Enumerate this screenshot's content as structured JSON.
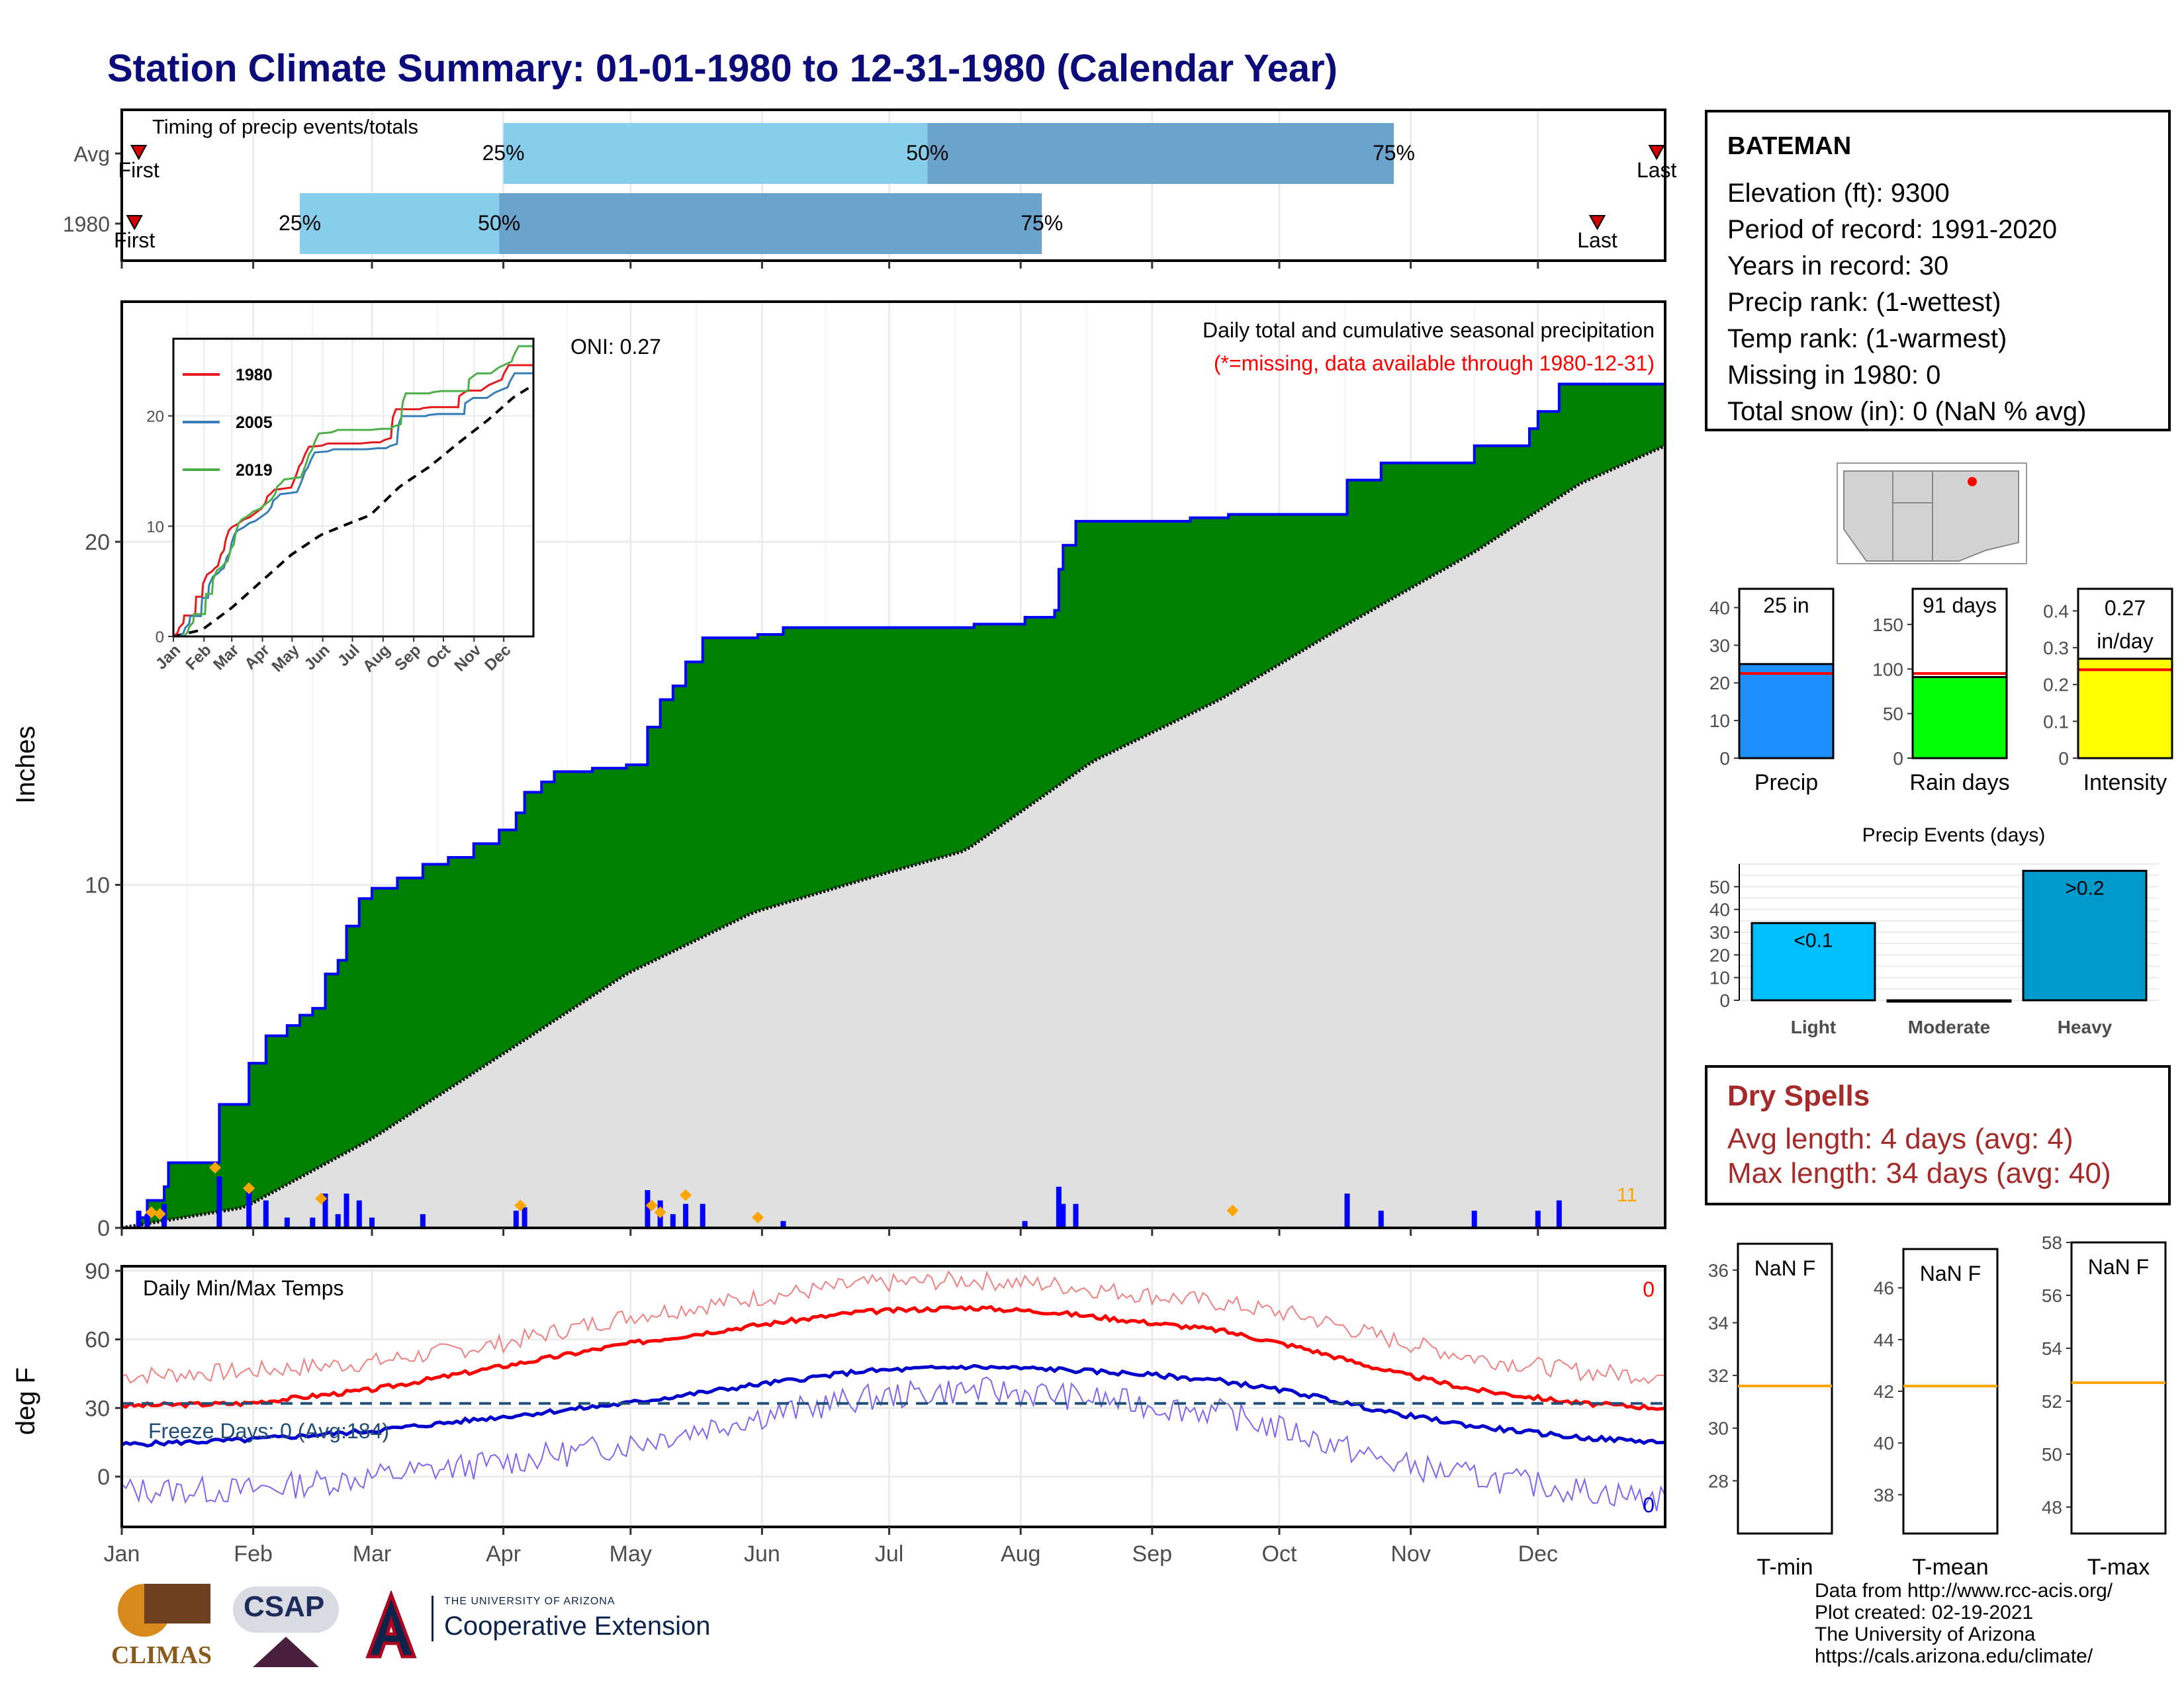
{
  "title": "Station Climate Summary: 01-01-1980 to 12-31-1980 (Calendar Year)",
  "station": {
    "name": "BATEMAN",
    "lines": [
      "Elevation (ft): 9300",
      "Period of record: 1991-2020",
      "Years in record: 30",
      "Precip rank:  (1-wettest)",
      "Temp rank:  (1-warmest)",
      "Missing in 1980: 0",
      "Total snow (in): 0 (NaN % avg)"
    ]
  },
  "dry_spells": {
    "heading": "Dry Spells",
    "avg": "Avg length: 4 days (avg: 4)",
    "max": "Max length: 34 days (avg: 40)"
  },
  "credits": [
    "Data from http://www.rcc-acis.org/",
    "Plot created: 02-19-2021",
    "The University of Arizona",
    "https://cals.arizona.edu/climate/"
  ],
  "logos": {
    "climas": "CLIMAS",
    "csap": "CSAP",
    "ua_small": "THE UNIVERSITY OF ARIZONA",
    "ua_big": "Cooperative Extension"
  },
  "colors": {
    "cum_green": "#008000",
    "cum_outline": "#0000ff",
    "normal_gray": "#e0e0e0",
    "bars_blue": "#0000ff",
    "tmax": "#ff0000",
    "tmin": "#0000cd",
    "timing_light": "#87ceeb",
    "timing_dark": "#6aa3cc",
    "precip_bar": "#1e90ff",
    "raindays_bar": "#00ff00",
    "intensity_bar": "#ffff00"
  },
  "chart_data": [
    {
      "type": "bar",
      "name": "timing",
      "title": "Timing of precip events/totals",
      "categories": [
        "Avg",
        "1980"
      ],
      "rows": [
        {
          "label": "Avg",
          "first": "Jan 5",
          "last": "Dec 29",
          "p25": "Apr 1",
          "p50": "Jul 10",
          "p75": "Oct 28",
          "labels": {
            "first": "First",
            "last": "Last",
            "p25": "25%",
            "p50": "50%",
            "p75": "75%"
          }
        },
        {
          "label": "1980",
          "first": "Jan 4",
          "last": "Dec 15",
          "p25": "Feb 12",
          "p50": "Mar 31",
          "p75": "Aug 6",
          "labels": {
            "first": "First",
            "last": "Last",
            "p25": "25%",
            "p50": "50%",
            "p75": "75%"
          }
        }
      ]
    },
    {
      "type": "area",
      "name": "cumulative_precip",
      "title": "Daily total and cumulative seasonal precipitation",
      "subtitle": "(*=missing, data available through 1980-12-31)",
      "annotation": "ONI: 0.27",
      "corner_count": "11",
      "ylabel": "Inches",
      "ylim": [
        0,
        27
      ],
      "yticks": [
        0,
        10,
        20
      ],
      "xticks": [
        "Jan",
        "Feb",
        "Mar",
        "Apr",
        "May",
        "Jun",
        "Jul",
        "Aug",
        "Sep",
        "Oct",
        "Nov",
        "Dec"
      ],
      "cumulative_1980": [
        [
          1,
          0
        ],
        [
          5,
          0.3
        ],
        [
          7,
          0.8
        ],
        [
          11,
          1.2
        ],
        [
          12,
          1.9
        ],
        [
          23,
          1.9
        ],
        [
          24,
          3.6
        ],
        [
          30,
          3.6
        ],
        [
          31,
          4.8
        ],
        [
          35,
          5.6
        ],
        [
          40,
          5.9
        ],
        [
          43,
          6.2
        ],
        [
          46,
          6.4
        ],
        [
          49,
          7.4
        ],
        [
          52,
          7.8
        ],
        [
          54,
          8.8
        ],
        [
          57,
          9.6
        ],
        [
          60,
          9.9
        ],
        [
          66,
          10.2
        ],
        [
          72,
          10.6
        ],
        [
          78,
          10.8
        ],
        [
          84,
          11.2
        ],
        [
          90,
          11.6
        ],
        [
          94,
          12.1
        ],
        [
          96,
          12.7
        ],
        [
          100,
          13.0
        ],
        [
          103,
          13.3
        ],
        [
          112,
          13.4
        ],
        [
          120,
          13.5
        ],
        [
          125,
          14.6
        ],
        [
          128,
          15.4
        ],
        [
          131,
          15.8
        ],
        [
          134,
          16.5
        ],
        [
          138,
          17.2
        ],
        [
          151,
          17.3
        ],
        [
          157,
          17.5
        ],
        [
          190,
          17.5
        ],
        [
          202,
          17.6
        ],
        [
          210,
          17.6
        ],
        [
          214,
          17.8
        ],
        [
          221,
          18.0
        ],
        [
          222,
          19.2
        ],
        [
          223,
          19.9
        ],
        [
          226,
          20.6
        ],
        [
          250,
          20.6
        ],
        [
          253,
          20.7
        ],
        [
          262,
          20.8
        ],
        [
          289,
          20.8
        ],
        [
          290,
          21.8
        ],
        [
          298,
          22.3
        ],
        [
          312,
          22.3
        ],
        [
          320,
          22.8
        ],
        [
          333,
          23.3
        ],
        [
          335,
          23.8
        ],
        [
          340,
          24.6
        ],
        [
          365,
          24.6
        ]
      ],
      "normal": [
        [
          1,
          0
        ],
        [
          30,
          0.6
        ],
        [
          60,
          2.6
        ],
        [
          90,
          5.0
        ],
        [
          120,
          7.4
        ],
        [
          150,
          9.2
        ],
        [
          180,
          10.3
        ],
        [
          200,
          11.0
        ],
        [
          230,
          13.6
        ],
        [
          260,
          15.4
        ],
        [
          290,
          17.6
        ],
        [
          320,
          19.7
        ],
        [
          345,
          21.7
        ],
        [
          365,
          22.8
        ]
      ],
      "daily_bars": [
        [
          5,
          0.5
        ],
        [
          7,
          0.4
        ],
        [
          11,
          0.7
        ],
        [
          24,
          1.5
        ],
        [
          31,
          1.2
        ],
        [
          35,
          0.8
        ],
        [
          40,
          0.3
        ],
        [
          46,
          0.3
        ],
        [
          49,
          1.0
        ],
        [
          52,
          0.4
        ],
        [
          54,
          1.0
        ],
        [
          57,
          0.8
        ],
        [
          60,
          0.3
        ],
        [
          72,
          0.4
        ],
        [
          94,
          0.5
        ],
        [
          96,
          0.6
        ],
        [
          125,
          1.1
        ],
        [
          128,
          0.8
        ],
        [
          131,
          0.4
        ],
        [
          134,
          0.7
        ],
        [
          138,
          0.7
        ],
        [
          157,
          0.2
        ],
        [
          214,
          0.2
        ],
        [
          222,
          1.2
        ],
        [
          223,
          0.7
        ],
        [
          226,
          0.7
        ],
        [
          290,
          1.0
        ],
        [
          298,
          0.5
        ],
        [
          320,
          0.5
        ],
        [
          335,
          0.5
        ],
        [
          340,
          0.8
        ]
      ],
      "extreme_markers": [
        [
          8,
          0.3
        ],
        [
          10,
          0.25
        ],
        [
          23,
          1.6
        ],
        [
          31,
          1.0
        ],
        [
          48,
          0.7
        ],
        [
          95,
          0.5
        ],
        [
          126,
          0.5
        ],
        [
          128,
          0.3
        ],
        [
          134,
          0.8
        ],
        [
          151,
          0.15
        ],
        [
          263,
          0.35
        ]
      ]
    },
    {
      "type": "line",
      "name": "inset_cumulative",
      "series": [
        {
          "name": "1980"
        },
        {
          "name": "2005"
        },
        {
          "name": "2019"
        }
      ],
      "ylim": [
        0,
        27
      ],
      "yticks": [
        0,
        10,
        20
      ],
      "xticks": [
        "Jan",
        "Feb",
        "Mar",
        "Apr",
        "May",
        "Jun",
        "Jul",
        "Aug",
        "Sep",
        "Oct",
        "Nov",
        "Dec"
      ]
    },
    {
      "type": "line",
      "name": "temperature",
      "title": "Daily Min/Max Temps",
      "ylabel": "deg F",
      "ylim": [
        -22,
        92
      ],
      "yticks": [
        0,
        30,
        60,
        90
      ],
      "xticks": [
        "Jan",
        "Feb",
        "Mar",
        "Apr",
        "May",
        "Jun",
        "Jul",
        "Aug",
        "Sep",
        "Oct",
        "Nov",
        "Dec"
      ],
      "freeze_line": 32,
      "annotation": "Freeze Days: 0 (Avg:184)",
      "tmax_count": "0",
      "tmin_count": "0",
      "avg_max": [
        [
          1,
          31
        ],
        [
          30,
          32
        ],
        [
          60,
          38
        ],
        [
          90,
          48
        ],
        [
          120,
          58
        ],
        [
          150,
          66
        ],
        [
          175,
          72
        ],
        [
          200,
          74
        ],
        [
          220,
          72
        ],
        [
          240,
          68
        ],
        [
          260,
          64
        ],
        [
          280,
          56
        ],
        [
          300,
          46
        ],
        [
          320,
          38
        ],
        [
          345,
          32
        ],
        [
          365,
          30
        ]
      ],
      "avg_min": [
        [
          1,
          14
        ],
        [
          30,
          16
        ],
        [
          60,
          20
        ],
        [
          90,
          26
        ],
        [
          120,
          32
        ],
        [
          150,
          40
        ],
        [
          175,
          46
        ],
        [
          200,
          48
        ],
        [
          220,
          47
        ],
        [
          240,
          45
        ],
        [
          260,
          42
        ],
        [
          280,
          36
        ],
        [
          300,
          28
        ],
        [
          320,
          22
        ],
        [
          345,
          17
        ],
        [
          365,
          15
        ]
      ],
      "rec_max": [
        [
          1,
          44
        ],
        [
          30,
          46
        ],
        [
          60,
          50
        ],
        [
          90,
          58
        ],
        [
          120,
          70
        ],
        [
          150,
          78
        ],
        [
          175,
          84
        ],
        [
          200,
          86
        ],
        [
          220,
          84
        ],
        [
          240,
          80
        ],
        [
          260,
          76
        ],
        [
          280,
          70
        ],
        [
          300,
          60
        ],
        [
          320,
          52
        ],
        [
          345,
          46
        ],
        [
          365,
          44
        ]
      ],
      "rec_min": [
        [
          1,
          -6
        ],
        [
          30,
          -6
        ],
        [
          60,
          0
        ],
        [
          90,
          6
        ],
        [
          120,
          14
        ],
        [
          150,
          26
        ],
        [
          175,
          34
        ],
        [
          200,
          38
        ],
        [
          220,
          36
        ],
        [
          240,
          32
        ],
        [
          260,
          28
        ],
        [
          280,
          18
        ],
        [
          300,
          6
        ],
        [
          320,
          0
        ],
        [
          345,
          -6
        ],
        [
          365,
          -10
        ]
      ]
    },
    {
      "type": "bar",
      "name": "totals",
      "panels": [
        {
          "name": "Precip",
          "value": 25,
          "avg": 22.5,
          "ylim": [
            0,
            45
          ],
          "yticks": [
            0,
            10,
            20,
            30,
            40
          ],
          "label": "25 in"
        },
        {
          "name": "Rain days",
          "value": 91,
          "avg": 95,
          "ylim": [
            0,
            190
          ],
          "yticks": [
            0,
            50,
            100,
            150
          ],
          "label": "91 days"
        },
        {
          "name": "Intensity",
          "value": 0.27,
          "avg": 0.24,
          "ylim": [
            0,
            0.46
          ],
          "yticks": [
            0.0,
            0.1,
            0.2,
            0.3,
            0.4
          ],
          "label": "0.27 in/day"
        }
      ]
    },
    {
      "type": "bar",
      "name": "precip_events",
      "title": "Precip Events (days)",
      "categories": [
        "Light",
        "Moderate",
        "Heavy"
      ],
      "values": [
        34,
        0,
        57
      ],
      "labels": [
        "<0.1",
        "",
        ">0.2"
      ],
      "ylim": [
        0,
        60
      ],
      "yticks": [
        0,
        10,
        20,
        30,
        40,
        50
      ]
    },
    {
      "type": "bar",
      "name": "temp_panels",
      "panels": [
        {
          "name": "T-min",
          "label": "NaN F",
          "avg": 31.6,
          "ylim": [
            26,
            37
          ],
          "yticks": [
            28,
            30,
            32,
            34,
            36
          ]
        },
        {
          "name": "T-mean",
          "label": "NaN F",
          "avg": 42.2,
          "ylim": [
            36.5,
            47.5
          ],
          "yticks": [
            38,
            40,
            42,
            44,
            46
          ]
        },
        {
          "name": "T-max",
          "label": "NaN F",
          "avg": 52.7,
          "ylim": [
            47,
            58
          ],
          "yticks": [
            48,
            50,
            52,
            54,
            56,
            58
          ]
        }
      ]
    }
  ]
}
